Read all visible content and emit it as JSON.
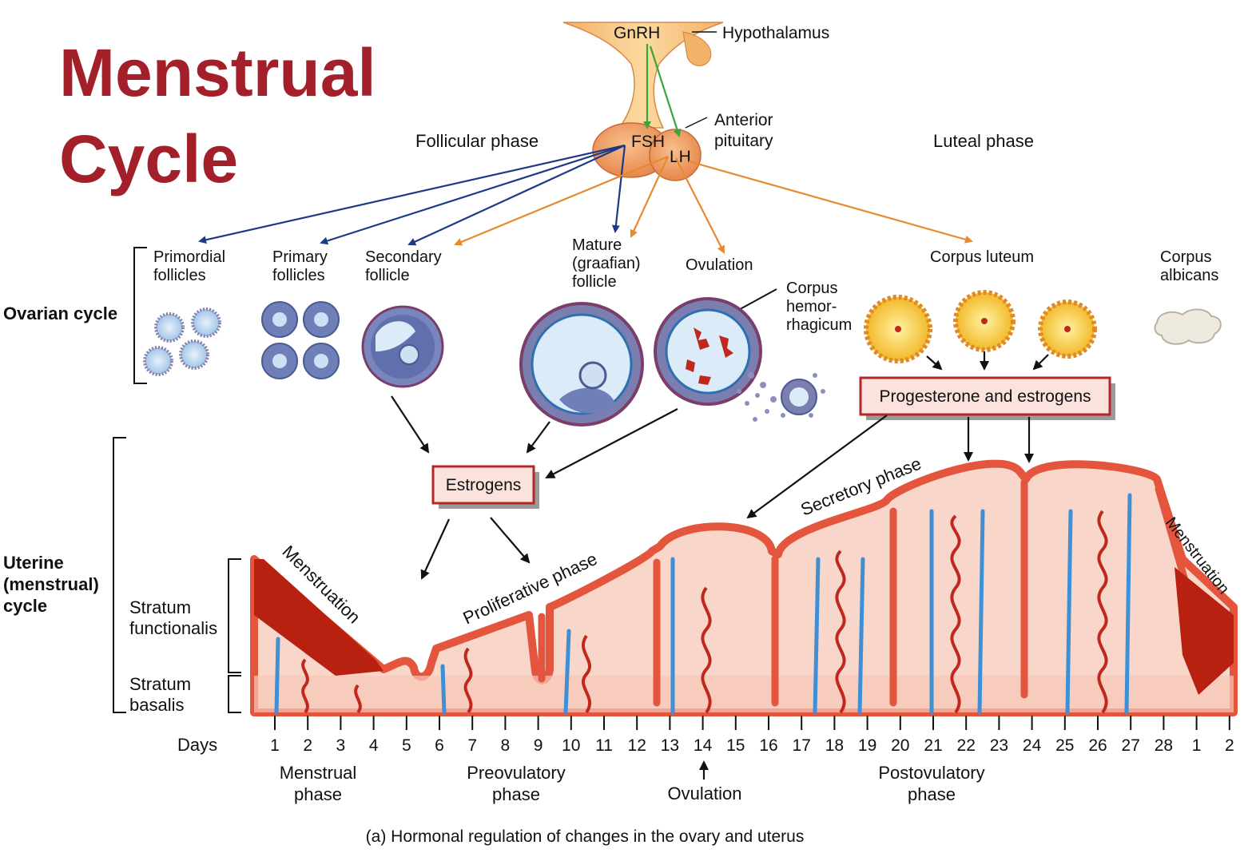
{
  "title": {
    "line1": "Menstrual",
    "line2": "Cycle"
  },
  "hormones": {
    "gnrh": "GnRH",
    "hypothalamus": "Hypothalamus",
    "fsh": "FSH",
    "lh": "LH",
    "anterior_pituitary_line1": "Anterior",
    "anterior_pituitary_line2": "pituitary"
  },
  "phases_top": {
    "follicular": "Follicular phase",
    "luteal": "Luteal phase"
  },
  "ovarian": {
    "label": "Ovarian cycle",
    "primordial": [
      "Primordial",
      "follicles"
    ],
    "primary": [
      "Primary",
      "follicles"
    ],
    "secondary": [
      "Secondary",
      "follicle"
    ],
    "mature": [
      "Mature",
      "(graafian)",
      "follicle"
    ],
    "ovulation": "Ovulation",
    "corpus_hemorrhagicum": [
      "Corpus",
      "hemor-",
      "rhagicum"
    ],
    "corpus_luteum": "Corpus luteum",
    "corpus_albicans": [
      "Corpus",
      "albicans"
    ]
  },
  "boxes": {
    "estrogens": "Estrogens",
    "progesterone": "Progesterone and estrogens"
  },
  "uterine": {
    "label": [
      "Uterine",
      "(menstrual)",
      "cycle"
    ],
    "functionalis": [
      "Stratum",
      "functionalis"
    ],
    "basalis": [
      "Stratum",
      "basalis"
    ],
    "menstruation_left": "Menstruation",
    "menstruation_right": "Menstruation",
    "proliferative": "Proliferative phase",
    "secretory": "Secretory phase"
  },
  "days": {
    "label": "Days",
    "values": [
      "1",
      "2",
      "3",
      "4",
      "5",
      "6",
      "7",
      "8",
      "9",
      "10",
      "11",
      "12",
      "13",
      "14",
      "15",
      "16",
      "17",
      "18",
      "19",
      "20",
      "21",
      "22",
      "23",
      "24",
      "25",
      "26",
      "27",
      "28",
      "1",
      "2"
    ]
  },
  "bottom_phases": {
    "menstrual": [
      "Menstrual",
      "phase"
    ],
    "preovulatory": [
      "Preovulatory",
      "phase"
    ],
    "ovulation": "Ovulation",
    "postovulatory": [
      "Postovulatory",
      "phase"
    ]
  },
  "caption": "(a) Hormonal regulation of changes in the ovary and uterus",
  "colors": {
    "title": "#a3202a",
    "fsh_arrow": "#1d3a86",
    "lh_arrow": "#e8892e",
    "gnrh_arrow": "#3aa63a",
    "endometrium": "#e4553d",
    "vessel": "#3d8fd6",
    "box_fill": "#fbe2dc",
    "box_border": "#b5262b"
  }
}
